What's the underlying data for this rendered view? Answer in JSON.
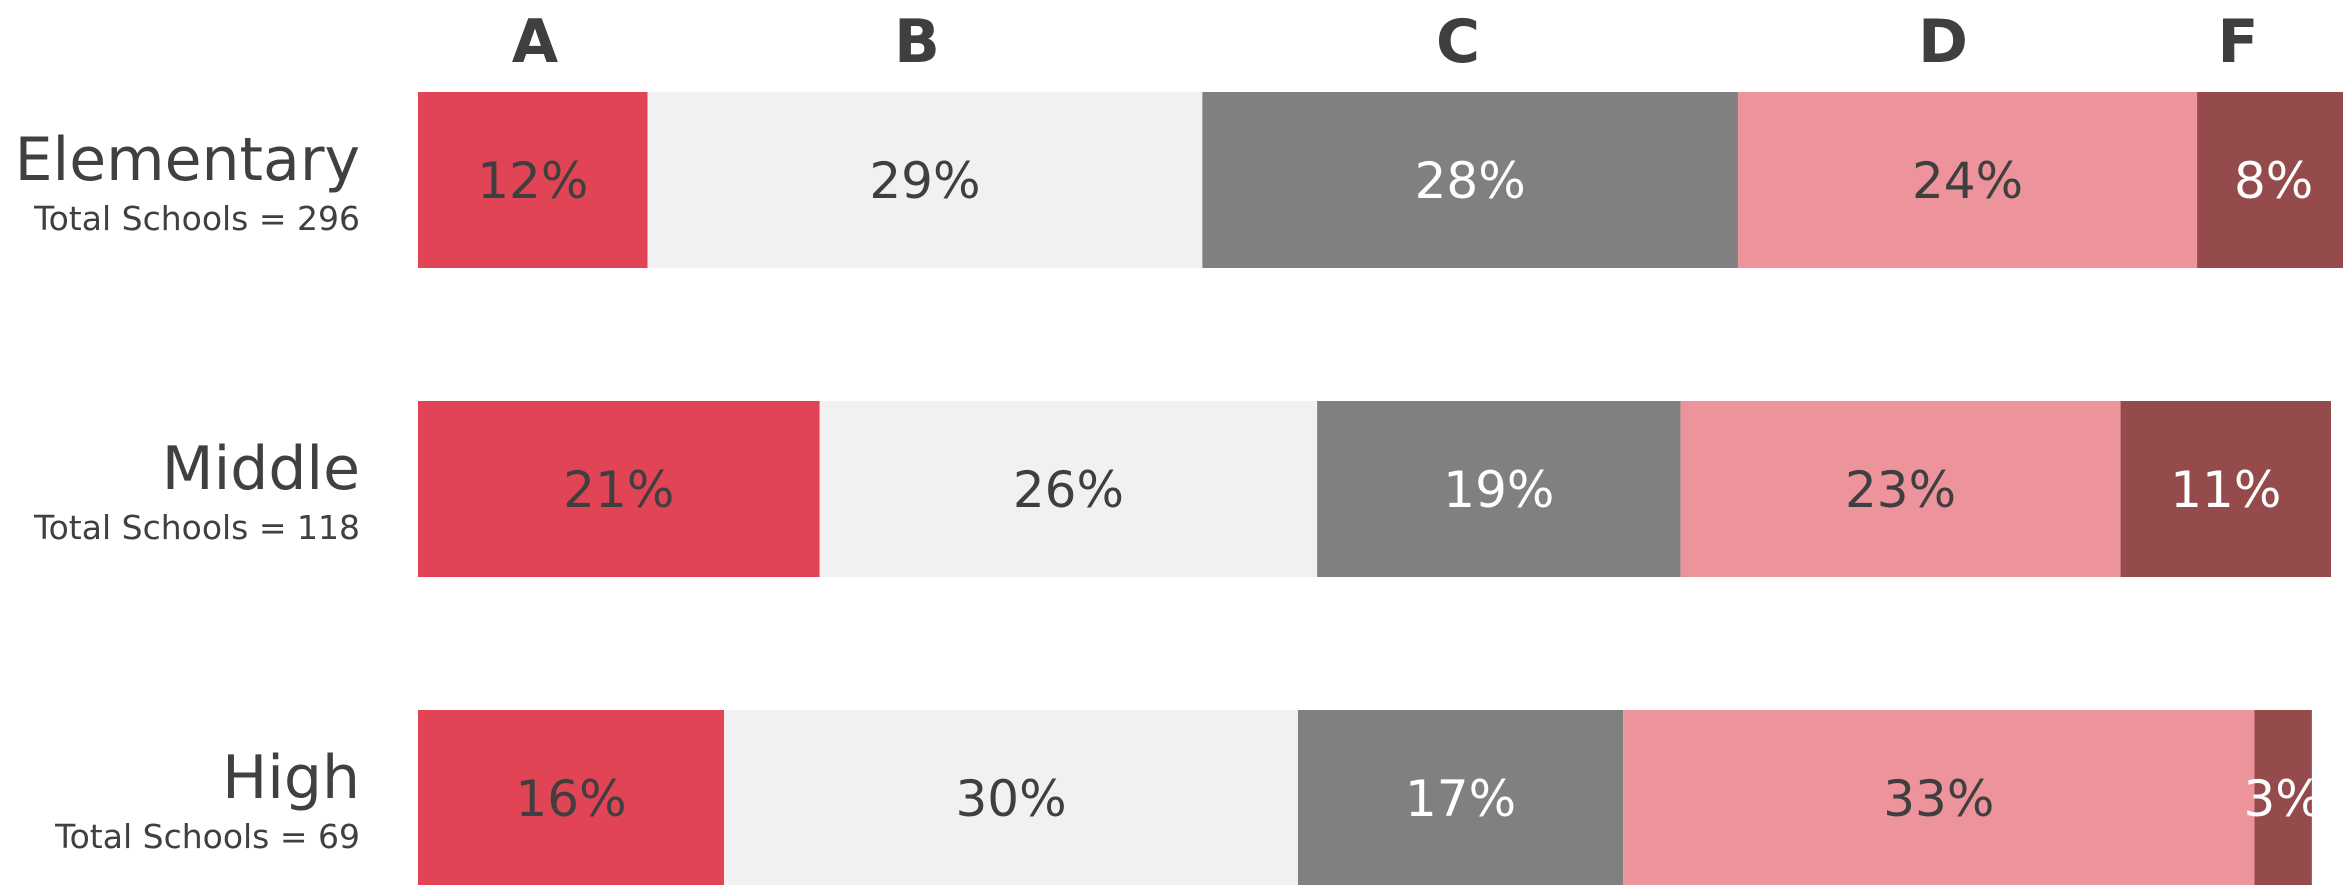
{
  "chart_data": {
    "type": "bar",
    "orientation": "horizontal",
    "stacked": true,
    "title": "",
    "categories": [
      "A",
      "B",
      "C",
      "D",
      "F"
    ],
    "colors": {
      "A": "#e04455",
      "B": "#f1f1f1",
      "C": "#808080",
      "D": "#ed939c",
      "F": "#954a4c"
    },
    "label_colors": {
      "A": "#3f3f3f",
      "B": "#3f3f3f",
      "C": "#ffffff",
      "D": "#3f3f3f",
      "F": "#ffffff"
    },
    "rows": [
      {
        "name": "Elementary",
        "subtitle": "Total Schools = 296",
        "values": [
          12,
          29,
          28,
          24,
          8
        ],
        "labels": [
          "12%",
          "29%",
          "28%",
          "24%",
          "8%"
        ]
      },
      {
        "name": "Middle",
        "subtitle": "Total Schools = 118",
        "values": [
          21,
          26,
          19,
          23,
          11
        ],
        "labels": [
          "21%",
          "26%",
          "19%",
          "23%",
          "11%"
        ]
      },
      {
        "name": "High",
        "subtitle": "Total Schools = 69",
        "values": [
          16,
          30,
          17,
          33,
          3
        ],
        "labels": [
          "16%",
          "30%",
          "17%",
          "33%",
          "3%"
        ]
      }
    ],
    "xlim": [
      0,
      101
    ],
    "legend": "top-header",
    "grid": false
  }
}
